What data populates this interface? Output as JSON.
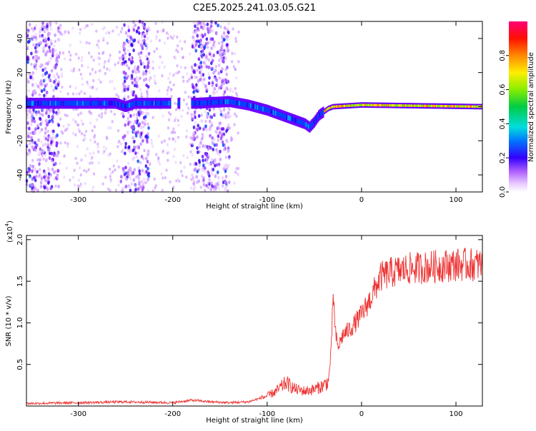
{
  "title": "C2E5.2025.241.03.05.G21",
  "chart_data": [
    {
      "type": "heatmap",
      "xlabel": "Height of straight line (km)",
      "ylabel": "Frequency (Hz)",
      "xlim": [
        -355,
        128
      ],
      "ylim": [
        -50,
        50
      ],
      "xticks": [
        -300,
        -200,
        -100,
        0,
        100
      ],
      "yticks": [
        -40,
        -20,
        0,
        20,
        40
      ],
      "colorbar": {
        "label": "Normalized spectral amplitude",
        "range": [
          0,
          1
        ],
        "ticks": [
          0.0,
          0.2,
          0.4,
          0.6,
          0.8
        ]
      },
      "track": {
        "x": [
          -355,
          -300,
          -260,
          -250,
          -240,
          -200,
          -175,
          -140,
          -120,
          -100,
          -80,
          -70,
          -60,
          -55,
          -50,
          -45,
          -40,
          -35,
          -30,
          0,
          128
        ],
        "y": [
          2,
          2,
          2,
          0,
          2,
          2,
          2,
          3,
          1,
          -2,
          -6,
          -8,
          -10,
          -12,
          -9,
          -5,
          -3,
          -1,
          0,
          1,
          0
        ]
      },
      "noise_bands": [
        [
          -355,
          -320
        ],
        [
          -255,
          -225
        ],
        [
          -180,
          -140
        ]
      ]
    },
    {
      "type": "line",
      "xlabel": "Height of straight line (km)",
      "ylabel": "SNR (10 * v/v)",
      "yscale_label": "(x10",
      "yscale_exp": "4",
      "xlim": [
        -355,
        128
      ],
      "ylim": [
        0,
        2.05
      ],
      "xticks": [
        -300,
        -200,
        -100,
        0,
        100
      ],
      "yticks": [
        0.5,
        1.0,
        1.5,
        2.0
      ],
      "series_color": "#ee3333",
      "x": [
        -355,
        -300,
        -250,
        -200,
        -180,
        -160,
        -140,
        -120,
        -100,
        -90,
        -80,
        -70,
        -60,
        -50,
        -40,
        -35,
        -32,
        -30,
        -28,
        -25,
        -20,
        -10,
        0,
        10,
        20,
        30,
        50,
        80,
        100,
        128
      ],
      "y": [
        0.03,
        0.04,
        0.05,
        0.04,
        0.07,
        0.05,
        0.04,
        0.05,
        0.12,
        0.18,
        0.28,
        0.2,
        0.18,
        0.2,
        0.25,
        0.3,
        0.7,
        1.4,
        0.9,
        0.7,
        0.85,
        0.95,
        1.1,
        1.3,
        1.55,
        1.6,
        1.65,
        1.68,
        1.7,
        1.7
      ]
    }
  ]
}
